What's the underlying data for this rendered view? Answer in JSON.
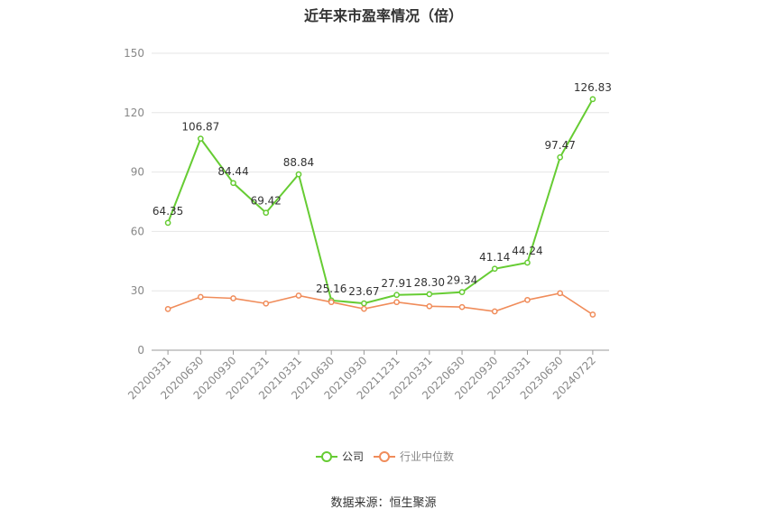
{
  "chart_data": {
    "type": "line",
    "title": "近年来市盈率情况（倍）",
    "categories": [
      "20200331",
      "20200630",
      "20200930",
      "20201231",
      "20210331",
      "20210630",
      "20210930",
      "20211231",
      "20220331",
      "20220630",
      "20220930",
      "20230331",
      "20230630",
      "20240722"
    ],
    "series": [
      {
        "name": "公司",
        "color": "#66cc33",
        "values": [
          64.35,
          106.87,
          84.44,
          69.42,
          88.84,
          25.16,
          23.67,
          27.91,
          28.3,
          29.34,
          41.14,
          44.24,
          97.47,
          126.83
        ],
        "labels": [
          "64.35",
          "106.87",
          "84.44",
          "69.42",
          "88.84",
          "25.16",
          "23.67",
          "27.91",
          "28.30",
          "29.34",
          "41.14",
          "44.24",
          "97.47",
          "126.83"
        ]
      },
      {
        "name": "行业中位数",
        "color": "#f08c5a",
        "values": [
          20.8,
          26.9,
          26.2,
          23.6,
          27.6,
          24.3,
          20.9,
          24.3,
          22.2,
          21.8,
          19.6,
          25.4,
          28.8,
          18.0
        ]
      }
    ],
    "ylim": [
      0,
      150
    ],
    "yticks": [
      "0",
      "30",
      "60",
      "90",
      "120",
      "150"
    ],
    "grid": true,
    "legend_position": "bottom"
  },
  "source_text": "数据来源：恒生聚源"
}
